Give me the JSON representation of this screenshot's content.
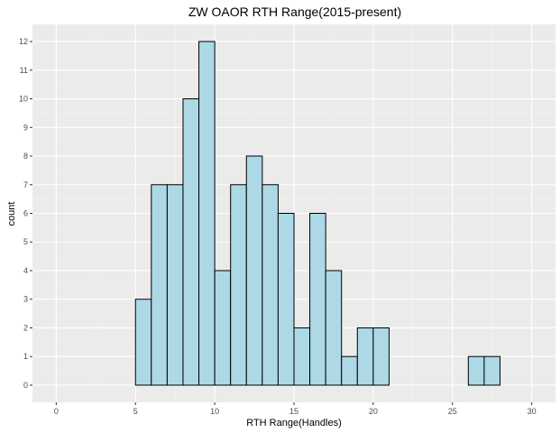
{
  "chart_data": {
    "type": "bar",
    "title": "ZW OAOR RTH Range(2015-present)",
    "xlabel": "RTH Range(Handles)",
    "ylabel": "count",
    "xlim": [
      -1.5,
      31.5
    ],
    "ylim": [
      -0.6,
      12.6
    ],
    "xticks": [
      0,
      5,
      10,
      15,
      20,
      25,
      30
    ],
    "yticks": [
      0,
      1,
      2,
      3,
      4,
      5,
      6,
      7,
      8,
      9,
      10,
      11,
      12
    ],
    "bin_width": 1,
    "bins": [
      {
        "x0": 0,
        "x1": 1,
        "count": 0
      },
      {
        "x0": 1,
        "x1": 2,
        "count": 0
      },
      {
        "x0": 2,
        "x1": 3,
        "count": 0
      },
      {
        "x0": 3,
        "x1": 4,
        "count": 0
      },
      {
        "x0": 4,
        "x1": 5,
        "count": 0
      },
      {
        "x0": 5,
        "x1": 6,
        "count": 3
      },
      {
        "x0": 6,
        "x1": 7,
        "count": 7
      },
      {
        "x0": 7,
        "x1": 8,
        "count": 7
      },
      {
        "x0": 8,
        "x1": 9,
        "count": 10
      },
      {
        "x0": 9,
        "x1": 10,
        "count": 12
      },
      {
        "x0": 10,
        "x1": 11,
        "count": 4
      },
      {
        "x0": 11,
        "x1": 12,
        "count": 7
      },
      {
        "x0": 12,
        "x1": 13,
        "count": 8
      },
      {
        "x0": 13,
        "x1": 14,
        "count": 7
      },
      {
        "x0": 14,
        "x1": 15,
        "count": 6
      },
      {
        "x0": 15,
        "x1": 16,
        "count": 2
      },
      {
        "x0": 16,
        "x1": 17,
        "count": 6
      },
      {
        "x0": 17,
        "x1": 18,
        "count": 4
      },
      {
        "x0": 18,
        "x1": 19,
        "count": 1
      },
      {
        "x0": 19,
        "x1": 20,
        "count": 2
      },
      {
        "x0": 20,
        "x1": 21,
        "count": 2
      },
      {
        "x0": 21,
        "x1": 22,
        "count": 0
      },
      {
        "x0": 22,
        "x1": 23,
        "count": 0
      },
      {
        "x0": 23,
        "x1": 24,
        "count": 0
      },
      {
        "x0": 24,
        "x1": 25,
        "count": 0
      },
      {
        "x0": 25,
        "x1": 26,
        "count": 0
      },
      {
        "x0": 26,
        "x1": 27,
        "count": 1
      },
      {
        "x0": 27,
        "x1": 28,
        "count": 1
      },
      {
        "x0": 28,
        "x1": 29,
        "count": 0
      },
      {
        "x0": 29,
        "x1": 30,
        "count": 0
      }
    ],
    "grid": true,
    "legend": "none",
    "colors": {
      "panel_bg": "#ebebeb",
      "grid_major": "#ffffff",
      "grid_minor": "#f4f4f4",
      "bar_fill": "#add8e6",
      "bar_stroke": "#000000",
      "tick_color": "#333333"
    }
  }
}
